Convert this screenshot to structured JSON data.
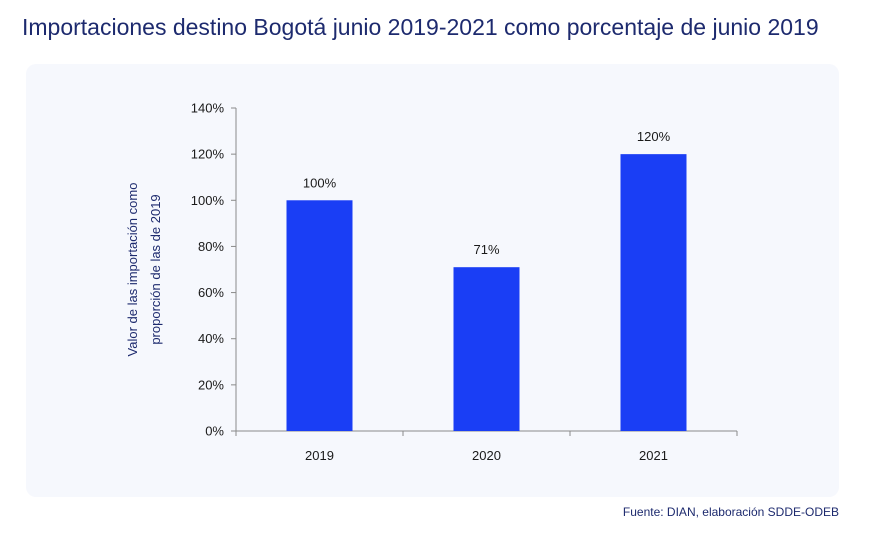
{
  "title": "Importaciones destino Bogotá junio 2019-2021 como porcentaje de junio 2019",
  "source": "Fuente: DIAN, elaboración SDDE-ODEB",
  "colors": {
    "bar": "#1a3ef5",
    "axis": "#8a8a8a",
    "title": "#1d2a6e"
  },
  "chart_data": {
    "type": "bar",
    "categories": [
      "2019",
      "2020",
      "2021"
    ],
    "values": [
      100,
      71,
      120
    ],
    "data_labels": [
      "100%",
      "71%",
      "120%"
    ],
    "ylabel_lines": [
      "Valor de las importación como",
      "proporción de las de 2019"
    ],
    "ylim": [
      0,
      140
    ],
    "yticks": [
      0,
      20,
      40,
      60,
      80,
      100,
      120,
      140
    ],
    "ytick_labels": [
      "0%",
      "20%",
      "40%",
      "60%",
      "80%",
      "100%",
      "120%",
      "140%"
    ],
    "grid": false,
    "legend": "none"
  }
}
